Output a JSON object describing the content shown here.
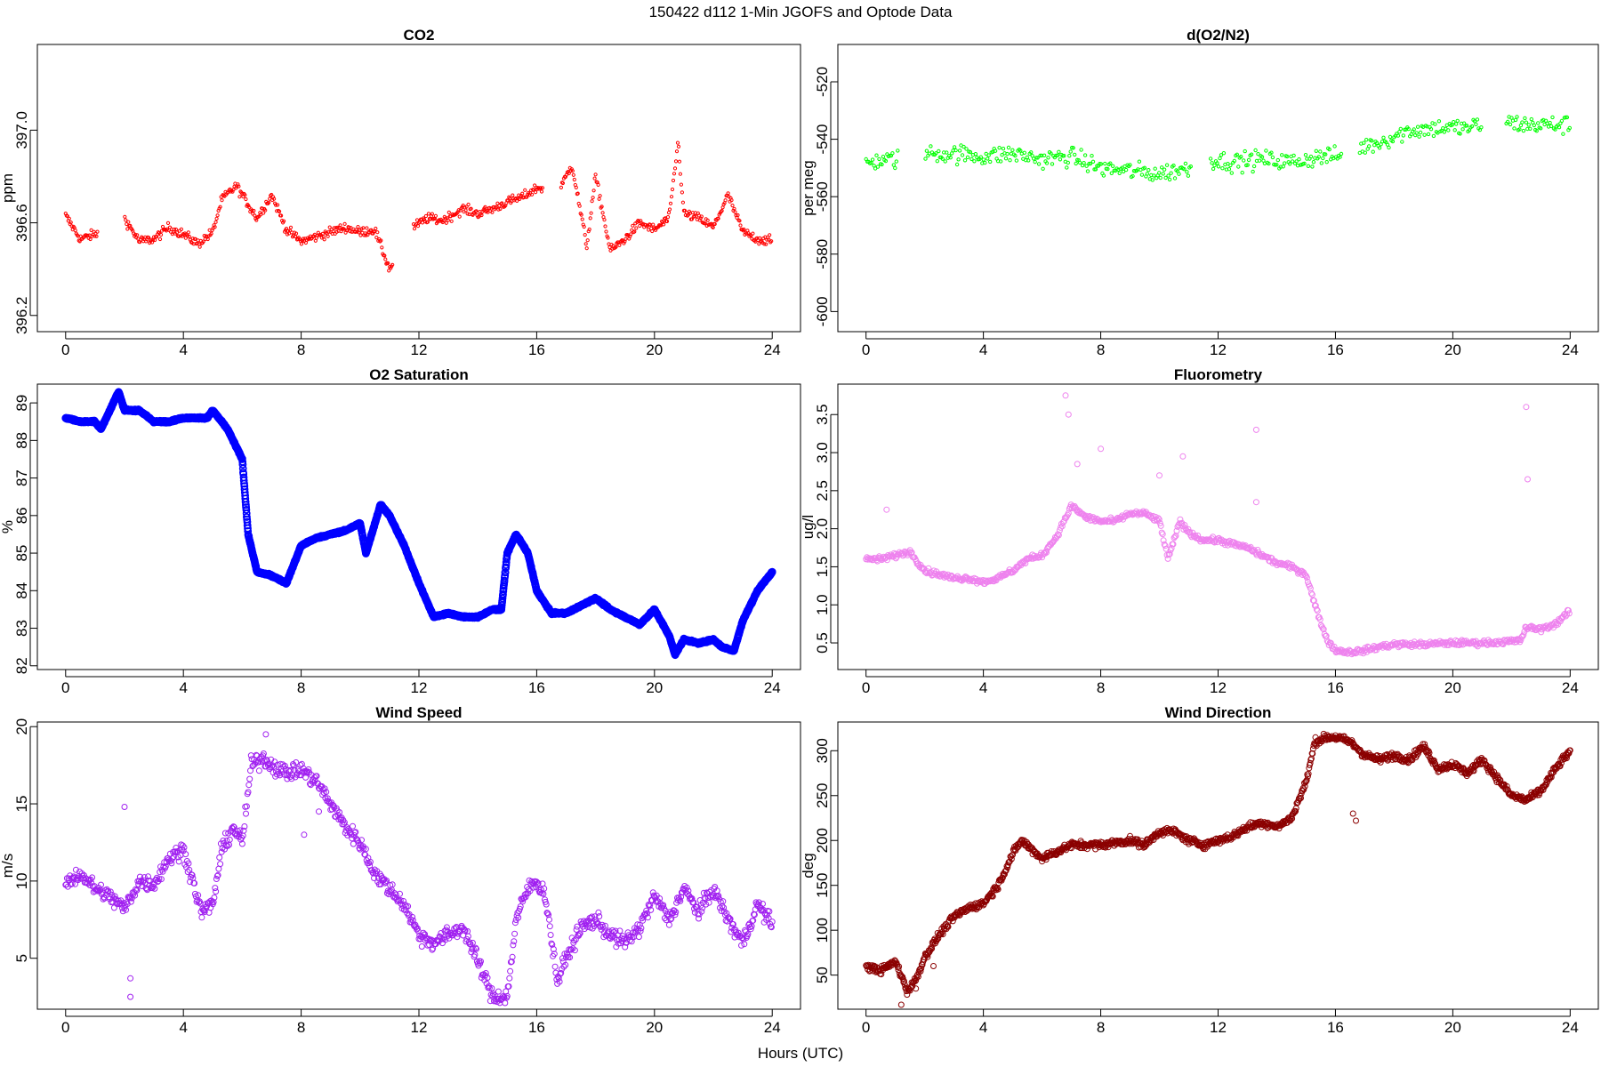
{
  "figure": {
    "title": "150422   d112   1-Min  JGOFS and Optode Data",
    "xlabel": "Hours (UTC)"
  },
  "chart_data": [
    {
      "id": "co2",
      "type": "scatter",
      "title": "CO2",
      "xlabel": "Hours (UTC)",
      "ylabel": "ppm",
      "color": "#ff0000",
      "marker": "small-open-circle",
      "xlim": [
        -0.96,
        24.96
      ],
      "ylim": [
        396.13,
        397.37
      ],
      "xticks": [
        0,
        4,
        8,
        12,
        16,
        20,
        24
      ],
      "yticks": [
        396.2,
        396.6,
        397.0
      ],
      "ytick_labels": [
        "396.2",
        "396.6",
        "397.0"
      ],
      "gaps": [
        [
          1.1,
          2.0
        ],
        [
          11.1,
          11.8
        ],
        [
          16.2,
          16.8
        ]
      ],
      "series_x": [
        0.0,
        0.5,
        1.0,
        2.0,
        2.5,
        3.0,
        3.5,
        4.0,
        4.5,
        5.0,
        5.3,
        5.8,
        6.5,
        7.0,
        7.5,
        8.0,
        8.5,
        9.0,
        9.5,
        10.0,
        10.5,
        11.0,
        11.8,
        12.3,
        12.8,
        13.5,
        14.0,
        14.5,
        15.0,
        15.5,
        16.0,
        16.8,
        17.2,
        17.7,
        18.0,
        18.5,
        19.0,
        19.5,
        20.0,
        20.5,
        20.8,
        21.0,
        21.5,
        22.0,
        22.5,
        23.0,
        23.5,
        24.0
      ],
      "series_y": [
        396.63,
        396.53,
        396.55,
        396.62,
        396.52,
        396.53,
        396.58,
        396.55,
        396.51,
        396.56,
        396.7,
        396.76,
        396.62,
        396.72,
        396.57,
        396.52,
        396.54,
        396.56,
        396.58,
        396.56,
        396.57,
        396.4,
        396.58,
        396.62,
        396.61,
        396.66,
        396.64,
        396.66,
        396.69,
        396.71,
        396.75,
        396.75,
        396.85,
        396.5,
        396.8,
        396.48,
        396.53,
        396.6,
        396.57,
        396.62,
        396.95,
        396.64,
        396.62,
        396.58,
        396.72,
        396.56,
        396.53,
        396.52
      ]
    },
    {
      "id": "o2n2",
      "type": "scatter",
      "title": "d(O2/N2)",
      "xlabel": "Hours (UTC)",
      "ylabel": "per meg",
      "color": "#00ff00",
      "marker": "small-open-circle",
      "xlim": [
        -0.96,
        24.96
      ],
      "ylim": [
        -607,
        -507
      ],
      "xticks": [
        0,
        4,
        8,
        12,
        16,
        20,
        24
      ],
      "yticks": [
        -600,
        -580,
        -560,
        -540,
        -520
      ],
      "ytick_labels": [
        "-600",
        "-580",
        "-560",
        "-540",
        "-520"
      ],
      "gaps": [
        [
          1.1,
          2.0
        ],
        [
          11.1,
          11.7
        ],
        [
          16.2,
          16.8
        ],
        [
          21.0,
          21.8
        ]
      ],
      "series_x": [
        0.0,
        1.0,
        2.0,
        3.0,
        4.0,
        5.0,
        6.0,
        7.0,
        8.0,
        9.0,
        10.0,
        11.0,
        11.7,
        12.5,
        13.5,
        14.5,
        15.5,
        16.2,
        16.8,
        17.5,
        18.5,
        19.5,
        20.5,
        21.0,
        21.8,
        22.5,
        23.5,
        24.0
      ],
      "series_y": [
        -548,
        -547,
        -545,
        -545,
        -546,
        -545,
        -547,
        -546,
        -550,
        -551,
        -552,
        -550,
        -547,
        -548,
        -547,
        -548,
        -546,
        -546,
        -543,
        -541,
        -537,
        -536,
        -536,
        -535,
        -534,
        -535,
        -535,
        -535
      ]
    },
    {
      "id": "o2sat",
      "type": "scatter",
      "title": "O2 Saturation",
      "xlabel": "Hours (UTC)",
      "ylabel": "%",
      "color": "#0000ff",
      "marker": "dense-circle-line",
      "xlim": [
        -0.96,
        24.96
      ],
      "ylim": [
        81.9,
        89.5
      ],
      "xticks": [
        0,
        4,
        8,
        12,
        16,
        20,
        24
      ],
      "yticks": [
        82,
        83,
        84,
        85,
        86,
        87,
        88,
        89
      ],
      "ytick_labels": [
        "82",
        "83",
        "84",
        "85",
        "86",
        "87",
        "88",
        "89"
      ],
      "gaps": [],
      "series_x": [
        0.0,
        0.5,
        1.0,
        1.2,
        1.5,
        1.8,
        2.0,
        2.5,
        3.0,
        3.5,
        4.0,
        4.5,
        4.8,
        5.0,
        5.5,
        6.0,
        6.2,
        6.5,
        7.0,
        7.5,
        8.0,
        8.5,
        9.0,
        9.5,
        10.0,
        10.2,
        10.7,
        11.0,
        11.5,
        12.0,
        12.5,
        13.0,
        13.5,
        14.0,
        14.5,
        14.8,
        15.0,
        15.3,
        15.7,
        16.0,
        16.5,
        17.0,
        17.5,
        18.0,
        18.5,
        19.0,
        19.5,
        20.0,
        20.5,
        20.7,
        21.0,
        21.5,
        22.0,
        22.3,
        22.7,
        23.0,
        23.5,
        24.0
      ],
      "series_y": [
        88.6,
        88.5,
        88.5,
        88.3,
        88.8,
        89.3,
        88.8,
        88.8,
        88.5,
        88.5,
        88.6,
        88.6,
        88.6,
        88.8,
        88.3,
        87.5,
        85.5,
        84.5,
        84.4,
        84.2,
        85.2,
        85.4,
        85.5,
        85.6,
        85.8,
        85.0,
        86.3,
        86.0,
        85.2,
        84.2,
        83.3,
        83.4,
        83.3,
        83.3,
        83.5,
        83.5,
        85.0,
        85.5,
        85.0,
        84.0,
        83.4,
        83.4,
        83.6,
        83.8,
        83.5,
        83.3,
        83.1,
        83.5,
        82.8,
        82.3,
        82.7,
        82.6,
        82.7,
        82.5,
        82.4,
        83.2,
        84.0,
        84.5
      ]
    },
    {
      "id": "fluor",
      "type": "scatter",
      "title": "Fluorometry",
      "xlabel": "Hours (UTC)",
      "ylabel": "ug/l",
      "color": "#ee82ee",
      "marker": "open-circle",
      "xlim": [
        -0.96,
        24.96
      ],
      "ylim": [
        0.15,
        3.9
      ],
      "xticks": [
        0,
        4,
        8,
        12,
        16,
        20,
        24
      ],
      "yticks": [
        0.5,
        1.0,
        1.5,
        2.0,
        2.5,
        3.0,
        3.5
      ],
      "ytick_labels": [
        "0.5",
        "1.0",
        "1.5",
        "2.0",
        "2.5",
        "3.0",
        "3.5"
      ],
      "gaps": [],
      "series_x": [
        0.0,
        0.5,
        1.0,
        1.5,
        2.0,
        2.5,
        3.0,
        3.5,
        4.0,
        4.5,
        5.0,
        5.5,
        6.0,
        6.5,
        7.0,
        7.5,
        8.0,
        8.5,
        9.0,
        9.5,
        10.0,
        10.3,
        10.7,
        11.0,
        11.5,
        12.0,
        12.5,
        13.0,
        13.5,
        14.0,
        14.5,
        15.0,
        15.3,
        15.7,
        16.0,
        16.5,
        17.0,
        17.5,
        18.0,
        19.0,
        20.0,
        21.0,
        22.0,
        22.3,
        22.5,
        23.0,
        23.5,
        24.0
      ],
      "series_y": [
        1.6,
        1.6,
        1.65,
        1.7,
        1.45,
        1.4,
        1.35,
        1.35,
        1.3,
        1.35,
        1.45,
        1.6,
        1.65,
        1.9,
        2.3,
        2.15,
        2.1,
        2.1,
        2.2,
        2.2,
        2.1,
        1.6,
        2.1,
        1.95,
        1.85,
        1.85,
        1.8,
        1.75,
        1.65,
        1.55,
        1.5,
        1.4,
        1.0,
        0.55,
        0.4,
        0.38,
        0.4,
        0.45,
        0.48,
        0.48,
        0.5,
        0.5,
        0.52,
        0.53,
        0.7,
        0.68,
        0.75,
        0.92
      ],
      "outliers_x": [
        6.8,
        6.9,
        7.2,
        8.0,
        10.0,
        10.8,
        13.3,
        13.3,
        22.5,
        22.55,
        0.7
      ],
      "outliers_y": [
        3.75,
        3.5,
        2.85,
        3.05,
        2.7,
        2.95,
        3.3,
        2.35,
        3.6,
        2.65,
        2.25
      ]
    },
    {
      "id": "wspd",
      "type": "scatter",
      "title": "Wind Speed",
      "xlabel": "Hours (UTC)",
      "ylabel": "m/s",
      "color": "#a020f0",
      "marker": "open-circle",
      "xlim": [
        -0.96,
        24.96
      ],
      "ylim": [
        1.7,
        20.3
      ],
      "xticks": [
        0,
        4,
        8,
        12,
        16,
        20,
        24
      ],
      "yticks": [
        5,
        10,
        15,
        20
      ],
      "ytick_labels": [
        "5",
        "10",
        "15",
        "20"
      ],
      "gaps": [],
      "series_x": [
        0.0,
        0.5,
        1.0,
        1.5,
        2.0,
        2.5,
        3.0,
        3.5,
        4.0,
        4.3,
        4.6,
        5.0,
        5.3,
        5.7,
        6.0,
        6.3,
        6.7,
        7.0,
        7.5,
        8.0,
        8.5,
        9.0,
        9.5,
        10.0,
        10.5,
        11.0,
        11.5,
        12.0,
        12.5,
        13.0,
        13.5,
        14.0,
        14.5,
        15.0,
        15.3,
        15.7,
        16.0,
        16.3,
        16.7,
        17.0,
        17.5,
        18.0,
        18.5,
        19.0,
        19.5,
        20.0,
        20.5,
        21.0,
        21.5,
        22.0,
        22.5,
        23.0,
        23.5,
        24.0
      ],
      "series_y": [
        9.8,
        10.5,
        9.5,
        9.0,
        8.2,
        10.0,
        9.8,
        11.5,
        12.0,
        10.2,
        8.0,
        8.5,
        12.0,
        13.5,
        12.5,
        17.5,
        18.0,
        17.5,
        17.0,
        17.2,
        16.5,
        15.0,
        13.5,
        12.5,
        10.5,
        9.5,
        8.5,
        6.5,
        6.0,
        6.5,
        7.0,
        4.8,
        2.5,
        2.5,
        7.5,
        9.5,
        10.0,
        9.0,
        3.5,
        5.0,
        7.0,
        7.5,
        6.5,
        6.0,
        7.0,
        9.0,
        7.5,
        9.5,
        8.0,
        9.5,
        7.5,
        6.0,
        8.5,
        7.2
      ],
      "outliers_x": [
        2.0,
        2.2,
        2.2,
        6.8,
        8.1,
        8.6
      ],
      "outliers_y": [
        14.8,
        2.5,
        3.7,
        19.5,
        13.0,
        14.5
      ]
    },
    {
      "id": "wdir",
      "type": "scatter",
      "title": "Wind Direction",
      "xlabel": "Hours (UTC)",
      "ylabel": "deg",
      "color": "#8b0000",
      "marker": "open-circle",
      "xlim": [
        -0.96,
        24.96
      ],
      "ylim": [
        12,
        332
      ],
      "xticks": [
        0,
        4,
        8,
        12,
        16,
        20,
        24
      ],
      "yticks": [
        50,
        100,
        150,
        200,
        250,
        300
      ],
      "ytick_labels": [
        "50",
        "100",
        "150",
        "200",
        "250",
        "300"
      ],
      "gaps": [],
      "series_x": [
        0.0,
        0.5,
        1.0,
        1.2,
        1.4,
        1.7,
        2.0,
        2.5,
        3.0,
        3.5,
        4.0,
        4.5,
        5.0,
        5.3,
        6.0,
        7.0,
        8.0,
        9.0,
        9.5,
        10.0,
        10.5,
        11.0,
        11.5,
        12.0,
        12.5,
        13.0,
        13.5,
        14.0,
        14.5,
        15.0,
        15.3,
        15.7,
        16.0,
        16.5,
        17.0,
        17.5,
        18.0,
        18.5,
        19.0,
        19.5,
        20.0,
        20.5,
        21.0,
        21.5,
        22.0,
        22.5,
        23.0,
        23.5,
        24.0
      ],
      "series_y": [
        60,
        55,
        65,
        50,
        32,
        45,
        70,
        95,
        115,
        125,
        130,
        150,
        185,
        200,
        180,
        195,
        195,
        200,
        195,
        210,
        210,
        200,
        195,
        200,
        205,
        215,
        220,
        215,
        225,
        265,
        310,
        315,
        315,
        310,
        295,
        290,
        295,
        290,
        305,
        280,
        285,
        275,
        290,
        270,
        250,
        245,
        255,
        280,
        300
      ],
      "outliers_x": [
        1.2,
        1.7,
        2.3,
        16.6,
        16.7
      ],
      "outliers_y": [
        17,
        35,
        60,
        230,
        222
      ]
    }
  ]
}
